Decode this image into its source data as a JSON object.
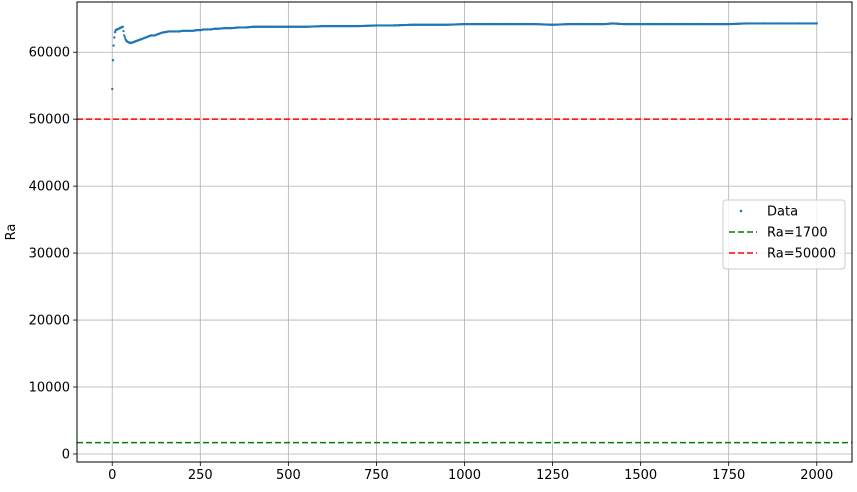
{
  "chart_data": {
    "type": "scatter",
    "title": "",
    "xlabel": "",
    "ylabel": "Ra",
    "xlim": [
      -100,
      2100
    ],
    "ylim": [
      -1200,
      67500
    ],
    "xticks": [
      0,
      250,
      500,
      750,
      1000,
      1250,
      1500,
      1750,
      2000
    ],
    "yticks": [
      0,
      10000,
      20000,
      30000,
      40000,
      50000,
      60000
    ],
    "grid": true,
    "legend_position": "center-right",
    "series": [
      {
        "name": "Data",
        "kind": "scatter",
        "color": "#1f77b4",
        "points": [
          [
            0,
            54500
          ],
          [
            2,
            58800
          ],
          [
            4,
            61000
          ],
          [
            6,
            62200
          ],
          [
            8,
            63000
          ],
          [
            10,
            63300
          ],
          [
            14,
            63400
          ],
          [
            18,
            63500
          ],
          [
            22,
            63600
          ],
          [
            26,
            63700
          ],
          [
            30,
            63800
          ],
          [
            34,
            62500
          ],
          [
            38,
            61900
          ],
          [
            42,
            61600
          ],
          [
            46,
            61500
          ],
          [
            50,
            61400
          ],
          [
            55,
            61400
          ],
          [
            60,
            61500
          ],
          [
            65,
            61600
          ],
          [
            70,
            61700
          ],
          [
            75,
            61800
          ],
          [
            80,
            61900
          ],
          [
            90,
            62100
          ],
          [
            100,
            62300
          ],
          [
            110,
            62500
          ],
          [
            120,
            62500
          ],
          [
            130,
            62700
          ],
          [
            140,
            62900
          ],
          [
            150,
            63000
          ],
          [
            160,
            63100
          ],
          [
            170,
            63100
          ],
          [
            180,
            63100
          ],
          [
            190,
            63100
          ],
          [
            200,
            63200
          ],
          [
            210,
            63200
          ],
          [
            220,
            63200
          ],
          [
            230,
            63200
          ],
          [
            240,
            63300
          ],
          [
            250,
            63300
          ],
          [
            260,
            63400
          ],
          [
            270,
            63400
          ],
          [
            280,
            63400
          ],
          [
            290,
            63500
          ],
          [
            300,
            63500
          ],
          [
            320,
            63600
          ],
          [
            340,
            63600
          ],
          [
            360,
            63700
          ],
          [
            380,
            63700
          ],
          [
            400,
            63800
          ],
          [
            420,
            63800
          ],
          [
            450,
            63800
          ],
          [
            480,
            63800
          ],
          [
            500,
            63800
          ],
          [
            550,
            63800
          ],
          [
            600,
            63900
          ],
          [
            650,
            63900
          ],
          [
            700,
            63900
          ],
          [
            750,
            64000
          ],
          [
            800,
            64000
          ],
          [
            850,
            64100
          ],
          [
            900,
            64100
          ],
          [
            950,
            64100
          ],
          [
            1000,
            64200
          ],
          [
            1050,
            64200
          ],
          [
            1100,
            64200
          ],
          [
            1150,
            64200
          ],
          [
            1200,
            64200
          ],
          [
            1250,
            64100
          ],
          [
            1300,
            64200
          ],
          [
            1350,
            64200
          ],
          [
            1400,
            64200
          ],
          [
            1420,
            64300
          ],
          [
            1450,
            64200
          ],
          [
            1500,
            64200
          ],
          [
            1550,
            64200
          ],
          [
            1600,
            64200
          ],
          [
            1650,
            64200
          ],
          [
            1700,
            64200
          ],
          [
            1750,
            64200
          ],
          [
            1800,
            64300
          ],
          [
            1850,
            64300
          ],
          [
            1900,
            64300
          ],
          [
            1950,
            64300
          ],
          [
            2000,
            64300
          ]
        ]
      },
      {
        "name": "Ra=1700",
        "kind": "hline",
        "y": 1700,
        "color": "#008000",
        "linestyle": "dashed"
      },
      {
        "name": "Ra=50000",
        "kind": "hline",
        "y": 50000,
        "color": "#ff0000",
        "linestyle": "dashed"
      }
    ]
  }
}
